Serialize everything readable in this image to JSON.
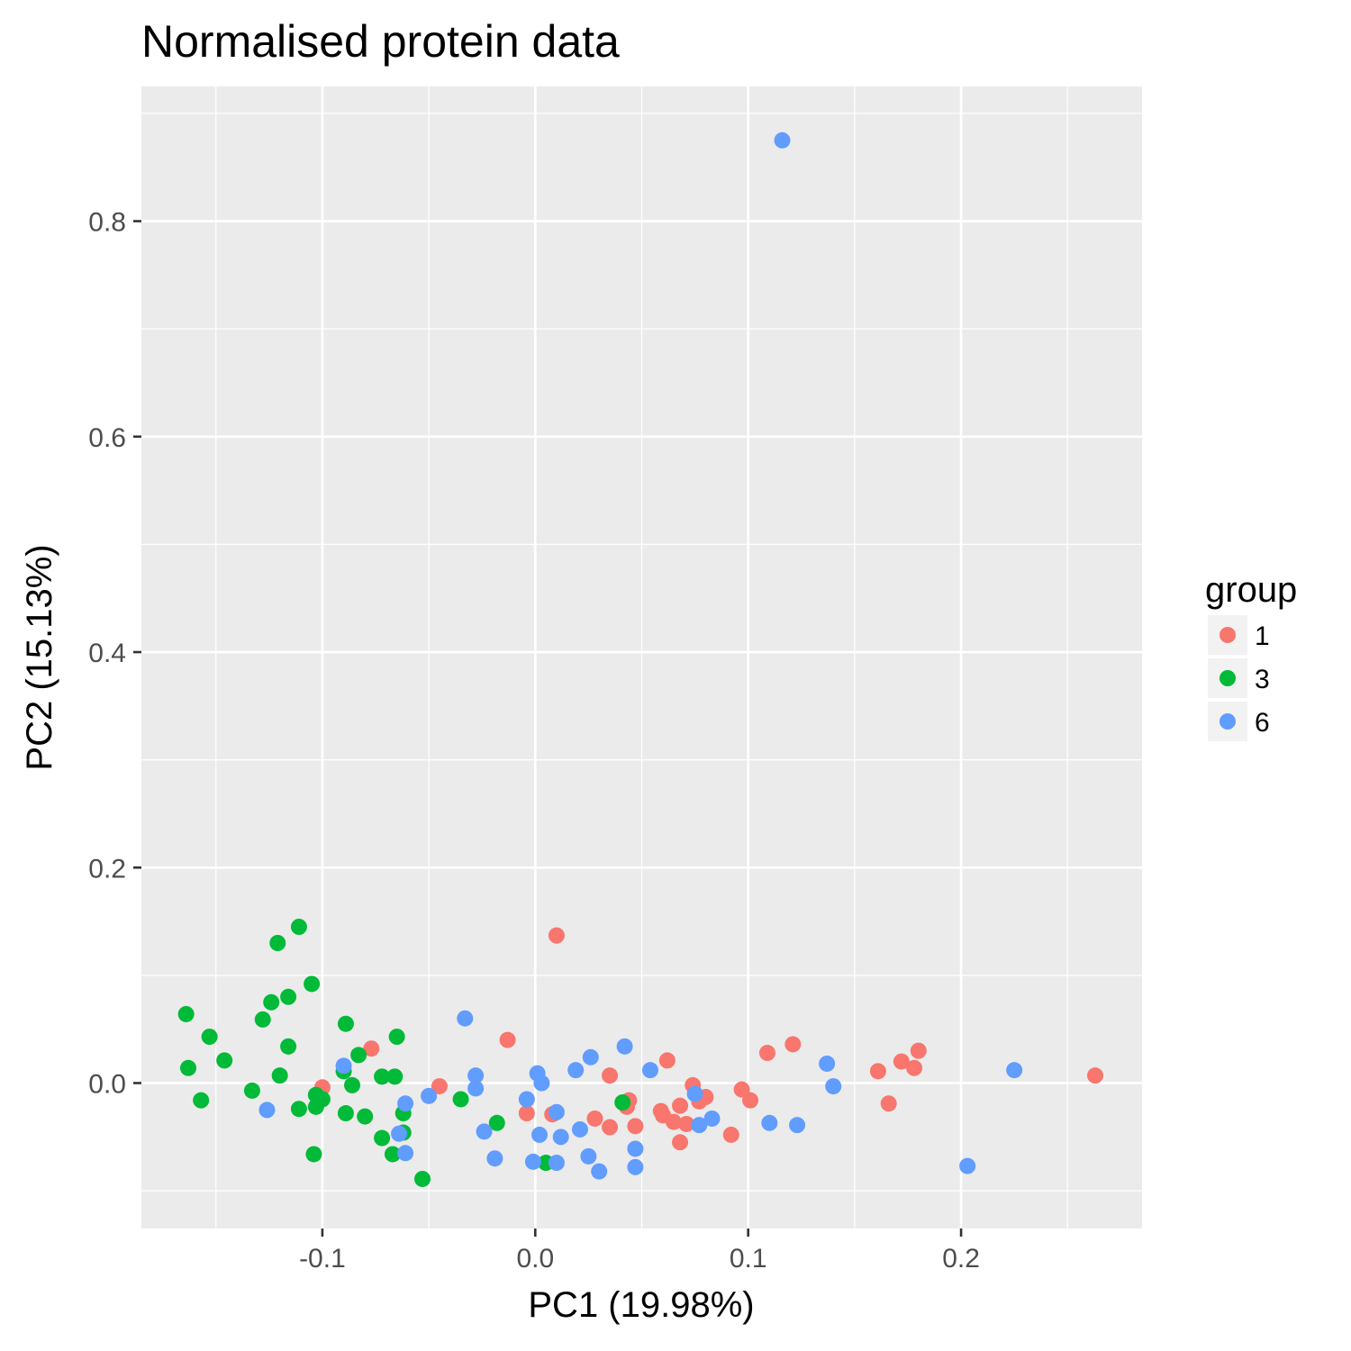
{
  "chart_data": {
    "type": "scatter",
    "title": "Normalised protein data",
    "xlabel": "PC1 (19.98%)",
    "ylabel": "PC2 (15.13%)",
    "xlim": [
      -0.185,
      0.285
    ],
    "ylim": [
      -0.135,
      0.925
    ],
    "x_ticks": [
      -0.1,
      0.0,
      0.1,
      0.2
    ],
    "x_tick_labels": [
      "-0.1",
      "0.0",
      "0.1",
      "0.2"
    ],
    "y_ticks": [
      0.0,
      0.2,
      0.4,
      0.6,
      0.8
    ],
    "y_tick_labels": [
      "0.0",
      "0.2",
      "0.4",
      "0.6",
      "0.8"
    ],
    "grid": true,
    "background": "#ebebeb",
    "legend": {
      "title": "group",
      "position": "right"
    },
    "series": [
      {
        "name": "1",
        "color": "#f8766d",
        "points": [
          [
            0.01,
            0.137
          ],
          [
            -0.013,
            0.04
          ],
          [
            0.121,
            0.036
          ],
          [
            0.109,
            0.028
          ],
          [
            0.18,
            0.03
          ],
          [
            0.172,
            0.02
          ],
          [
            0.178,
            0.014
          ],
          [
            0.161,
            0.011
          ],
          [
            0.263,
            0.007
          ],
          [
            0.062,
            0.021
          ],
          [
            0.035,
            0.007
          ],
          [
            -0.077,
            0.032
          ],
          [
            -0.045,
            -0.003
          ],
          [
            -0.1,
            -0.004
          ],
          [
            0.074,
            -0.002
          ],
          [
            0.097,
            -0.006
          ],
          [
            0.08,
            -0.013
          ],
          [
            0.101,
            -0.016
          ],
          [
            0.166,
            -0.019
          ],
          [
            0.044,
            -0.016
          ],
          [
            0.068,
            -0.021
          ],
          [
            0.043,
            -0.022
          ],
          [
            0.059,
            -0.026
          ],
          [
            0.077,
            -0.017
          ],
          [
            -0.004,
            -0.028
          ],
          [
            0.008,
            -0.029
          ],
          [
            0.06,
            -0.03
          ],
          [
            0.028,
            -0.033
          ],
          [
            0.065,
            -0.036
          ],
          [
            0.071,
            -0.038
          ],
          [
            0.047,
            -0.04
          ],
          [
            0.035,
            -0.041
          ],
          [
            0.092,
            -0.048
          ],
          [
            0.068,
            -0.055
          ]
        ]
      },
      {
        "name": "3",
        "color": "#00ba38",
        "points": [
          [
            -0.111,
            0.145
          ],
          [
            -0.121,
            0.13
          ],
          [
            -0.105,
            0.092
          ],
          [
            -0.116,
            0.08
          ],
          [
            -0.124,
            0.075
          ],
          [
            -0.164,
            0.064
          ],
          [
            -0.128,
            0.059
          ],
          [
            -0.089,
            0.055
          ],
          [
            -0.153,
            0.043
          ],
          [
            -0.065,
            0.043
          ],
          [
            -0.116,
            0.034
          ],
          [
            -0.083,
            0.026
          ],
          [
            -0.146,
            0.021
          ],
          [
            -0.163,
            0.014
          ],
          [
            -0.09,
            0.011
          ],
          [
            -0.12,
            0.007
          ],
          [
            -0.072,
            0.006
          ],
          [
            -0.066,
            0.006
          ],
          [
            -0.086,
            -0.002
          ],
          [
            -0.133,
            -0.007
          ],
          [
            -0.103,
            -0.011
          ],
          [
            -0.1,
            -0.015
          ],
          [
            -0.035,
            -0.015
          ],
          [
            -0.157,
            -0.016
          ],
          [
            0.041,
            -0.018
          ],
          [
            -0.103,
            -0.022
          ],
          [
            -0.111,
            -0.024
          ],
          [
            -0.089,
            -0.028
          ],
          [
            -0.062,
            -0.028
          ],
          [
            -0.08,
            -0.031
          ],
          [
            -0.018,
            -0.037
          ],
          [
            -0.062,
            -0.046
          ],
          [
            -0.072,
            -0.051
          ],
          [
            -0.104,
            -0.066
          ],
          [
            -0.067,
            -0.066
          ],
          [
            0.005,
            -0.074
          ],
          [
            -0.053,
            -0.089
          ]
        ]
      },
      {
        "name": "6",
        "color": "#619cff",
        "points": [
          [
            0.116,
            0.875
          ],
          [
            -0.033,
            0.06
          ],
          [
            0.042,
            0.034
          ],
          [
            0.026,
            0.024
          ],
          [
            0.137,
            0.018
          ],
          [
            -0.09,
            0.016
          ],
          [
            0.054,
            0.012
          ],
          [
            0.019,
            0.012
          ],
          [
            0.225,
            0.012
          ],
          [
            0.001,
            0.009
          ],
          [
            -0.028,
            0.007
          ],
          [
            0.003,
            0.0
          ],
          [
            0.14,
            -0.003
          ],
          [
            -0.028,
            -0.005
          ],
          [
            -0.05,
            -0.012
          ],
          [
            0.075,
            -0.01
          ],
          [
            -0.004,
            -0.015
          ],
          [
            -0.061,
            -0.019
          ],
          [
            0.01,
            -0.027
          ],
          [
            -0.126,
            -0.025
          ],
          [
            0.083,
            -0.033
          ],
          [
            0.11,
            -0.037
          ],
          [
            0.123,
            -0.039
          ],
          [
            0.077,
            -0.039
          ],
          [
            0.021,
            -0.043
          ],
          [
            -0.024,
            -0.045
          ],
          [
            -0.064,
            -0.047
          ],
          [
            0.002,
            -0.048
          ],
          [
            0.012,
            -0.05
          ],
          [
            0.047,
            -0.061
          ],
          [
            -0.061,
            -0.065
          ],
          [
            0.025,
            -0.068
          ],
          [
            -0.019,
            -0.07
          ],
          [
            -0.001,
            -0.073
          ],
          [
            0.01,
            -0.074
          ],
          [
            0.203,
            -0.077
          ],
          [
            0.047,
            -0.078
          ],
          [
            0.03,
            -0.082
          ]
        ]
      }
    ]
  }
}
